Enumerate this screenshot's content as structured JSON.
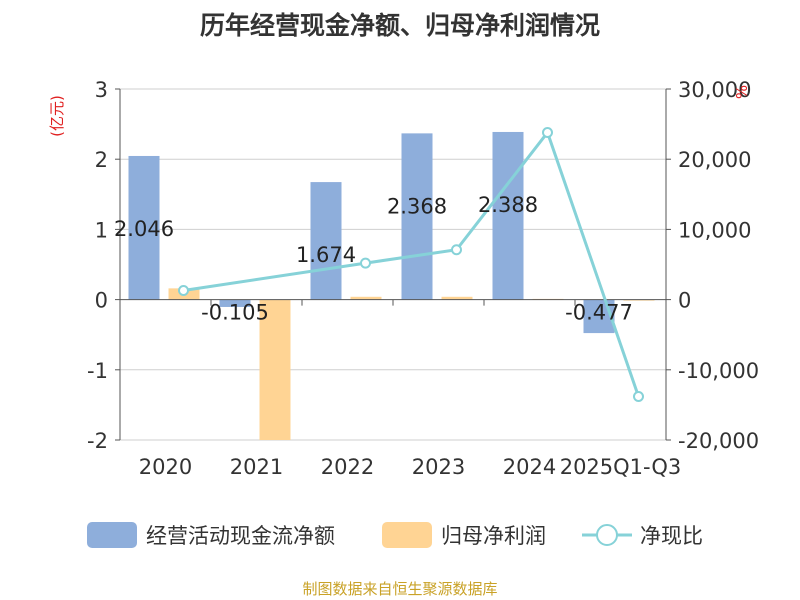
{
  "chart_data": {
    "type": "bar",
    "title": "历年经营现金净额、归母净利润情况",
    "categories": [
      "2020",
      "2021",
      "2022",
      "2023",
      "2024",
      "2025Q1-Q3"
    ],
    "series": [
      {
        "name": "经营活动现金流净额",
        "type": "bar",
        "axis": "left",
        "color": "#8eaedb",
        "values": [
          2.046,
          -0.105,
          1.674,
          2.368,
          2.388,
          -0.477
        ],
        "labels": [
          "2.046",
          "-0.105",
          "1.674",
          "2.368",
          "2.388",
          "-0.477"
        ]
      },
      {
        "name": "归母净利润",
        "type": "bar",
        "axis": "left",
        "color": "#ffd494",
        "values": [
          0.16,
          -2.0,
          0.04,
          0.04,
          0.01,
          -0.01
        ]
      },
      {
        "name": "净现比",
        "type": "line",
        "axis": "right",
        "color": "#86d2d8",
        "values": [
          1300,
          null,
          5200,
          7100,
          23800,
          -13800
        ]
      }
    ],
    "ylim_left": [
      -2,
      3
    ],
    "yticks_left": [
      "3",
      "2",
      "1",
      "0",
      "-1",
      "-2"
    ],
    "ylabel_left": "(亿元)",
    "ylim_right": [
      -20000,
      30000
    ],
    "yticks_right": [
      "30,000",
      "20,000",
      "10,000",
      "0",
      "-10,000",
      "-20,000"
    ],
    "ylabel_right": "%",
    "grid": true,
    "legend_position": "bottom"
  },
  "source": "制图数据来自恒生聚源数据库"
}
